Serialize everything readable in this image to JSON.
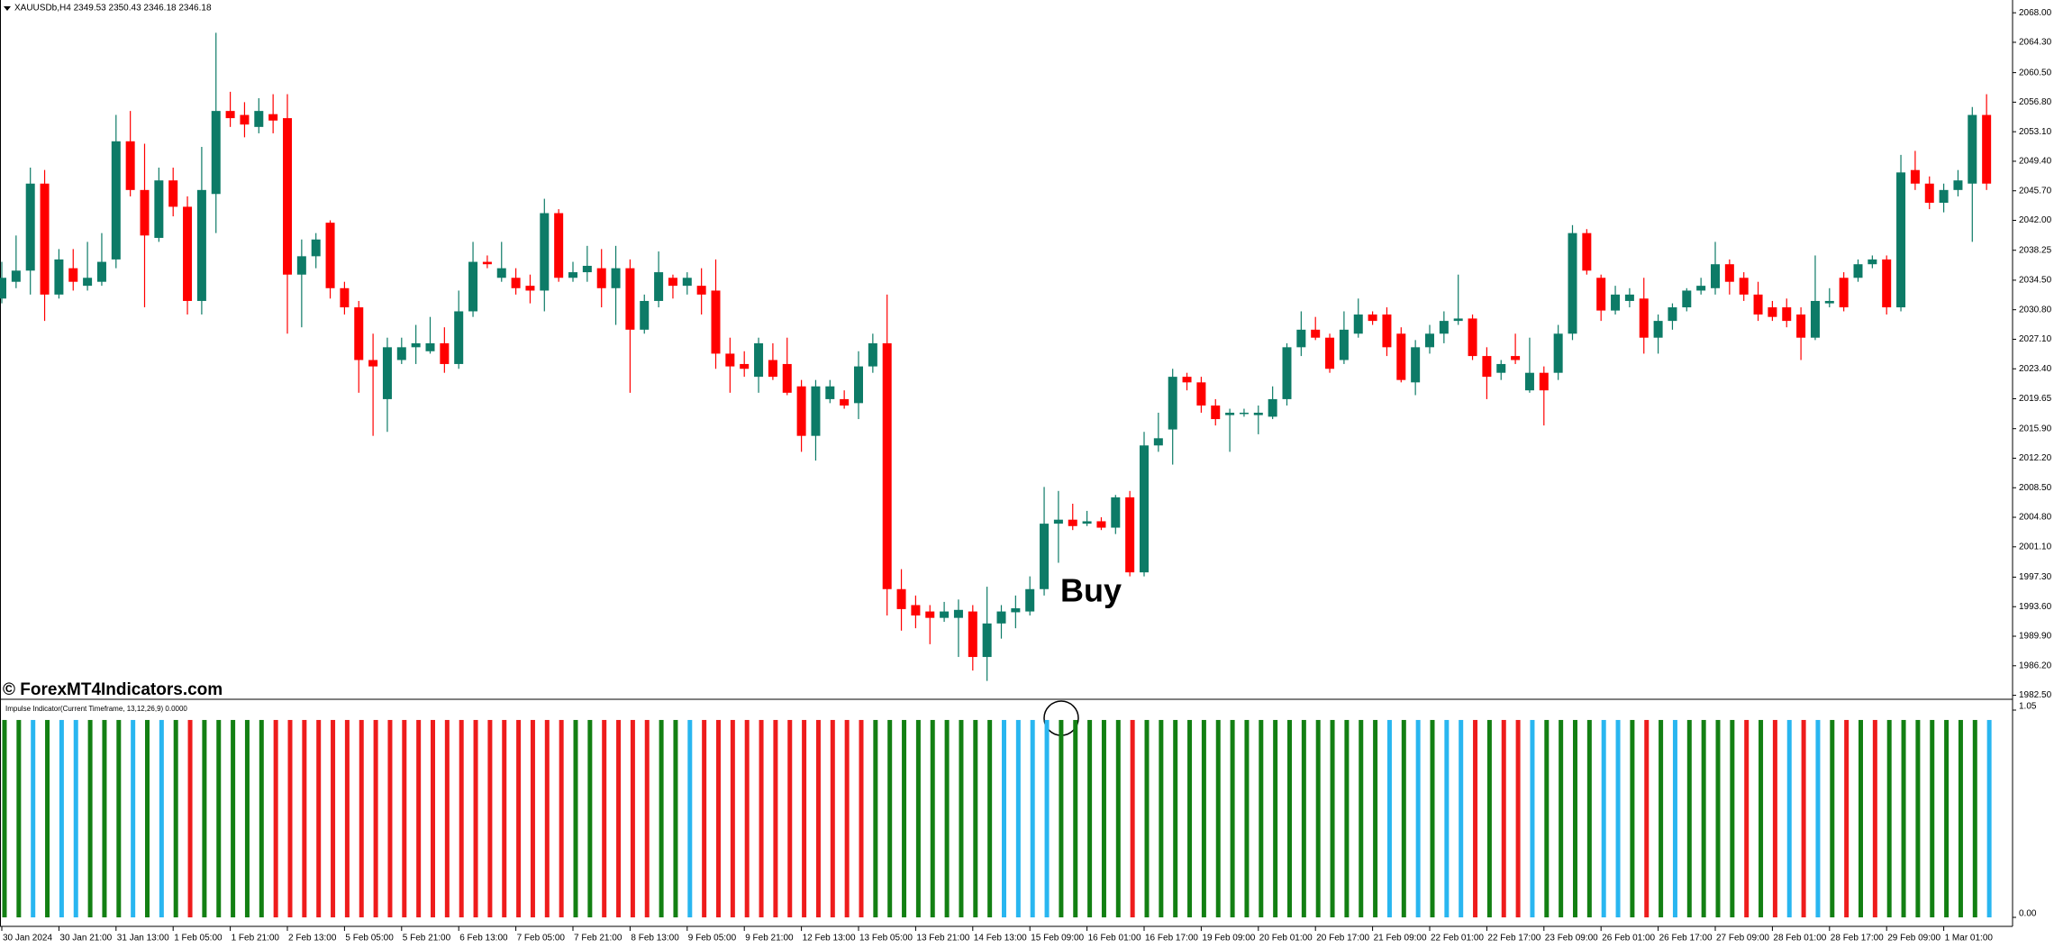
{
  "chart_data": [
    {
      "type": "candlestick",
      "title": "XAUUSDb,H4  2349.53 2350.43 2346.18 2346.18",
      "annotation": "Buy",
      "watermark": "© ForexMT4Indicators.com",
      "up_color": "#0d7b67",
      "down_color": "#ff0000",
      "ylim": [
        1982.0,
        2069.6
      ],
      "yticks": [
        {
          "value": 1982.5,
          "label": "1982.50"
        },
        {
          "value": 1986.2,
          "label": "1986.20"
        },
        {
          "value": 1989.9,
          "label": "1989.90"
        },
        {
          "value": 1993.6,
          "label": "1993.60"
        },
        {
          "value": 1997.3,
          "label": "1997.30"
        },
        {
          "value": 2001.1,
          "label": "2001.10"
        },
        {
          "value": 2004.8,
          "label": "2004.80"
        },
        {
          "value": 2008.5,
          "label": "2008.50"
        },
        {
          "value": 2012.2,
          "label": "2012.20"
        },
        {
          "value": 2015.9,
          "label": "2015.90"
        },
        {
          "value": 2019.65,
          "label": "2019.65"
        },
        {
          "value": 2023.4,
          "label": "2023.40"
        },
        {
          "value": 2027.1,
          "label": "2027.10"
        },
        {
          "value": 2030.8,
          "label": "2030.80"
        },
        {
          "value": 2034.5,
          "label": "2034.50"
        },
        {
          "value": 2038.25,
          "label": "2038.25"
        },
        {
          "value": 2042,
          "label": "2042.00"
        },
        {
          "value": 2045.7,
          "label": "2045.70"
        },
        {
          "value": 2049.4,
          "label": "2049.40"
        },
        {
          "value": 2053.1,
          "label": "2053.10"
        },
        {
          "value": 2056.8,
          "label": "2056.80"
        },
        {
          "value": 2060.5,
          "label": "2060.50"
        },
        {
          "value": 2064.3,
          "label": "2064.30"
        },
        {
          "value": 2068,
          "label": "2068.00"
        }
      ],
      "open": [
        2032.2,
        2034.3,
        2035.7,
        2046.6,
        2032.7,
        2036.0,
        2033.8,
        2034.3,
        2037.1,
        2051.9,
        2045.8,
        2039.8,
        2047.0,
        2043.7,
        2031.9,
        2045.3,
        2055.7,
        2055.2,
        2053.7,
        2055.3,
        2054.8,
        2035.2,
        2037.5,
        2041.7,
        2033.5,
        2031.1,
        2024.5,
        2019.6,
        2024.5,
        2026.1,
        2025.6,
        2026.6,
        2024.0,
        2030.6,
        2036.8,
        2034.8,
        2034.8,
        2033.8,
        2033.2,
        2042.9,
        2034.8,
        2035.5,
        2036.0,
        2033.5,
        2036.0,
        2028.3,
        2031.9,
        2034.8,
        2033.8,
        2033.8,
        2033.2,
        2025.3,
        2024.0,
        2022.4,
        2024.5,
        2024.0,
        2021.2,
        2015.0,
        2019.6,
        2019.6,
        2019.1,
        2023.7,
        2026.6,
        1995.8,
        1993.8,
        1993.0,
        1992.2,
        1992.2,
        1993.0,
        1987.3,
        1991.5,
        1992.9,
        1993.0,
        1995.8,
        2004.0,
        2004.5,
        2004.0,
        2004.3,
        2003.5,
        2007.3,
        1997.9,
        2013.8,
        2015.8,
        2022.4,
        2021.7,
        2018.8,
        2017.6,
        2017.8,
        2017.6,
        2017.4,
        2019.6,
        2026.1,
        2028.3,
        2027.3,
        2024.5,
        2027.8,
        2030.2,
        2030.2,
        2027.8,
        2021.7,
        2026.1,
        2027.8,
        2029.4,
        2029.7,
        2025.0,
        2022.9,
        2025.0,
        2020.7,
        2022.9,
        2022.9,
        2027.8,
        2040.4,
        2034.8,
        2030.7,
        2031.9,
        2032.2,
        2027.3,
        2029.4,
        2031.1,
        2033.2,
        2033.5,
        2036.5,
        2034.8,
        2032.7,
        2031.1,
        2031.1,
        2030.2,
        2027.3,
        2031.6,
        2034.8,
        2034.8,
        2036.5,
        2037.1,
        2031.1,
        2048.3,
        2046.6,
        2044.2,
        2045.8,
        2046.6,
        2055.2
      ],
      "high": [
        2036.8,
        2040.1,
        2048.6,
        2048.3,
        2038.4,
        2038.4,
        2039.3,
        2040.4,
        2055.2,
        2055.7,
        2051.6,
        2048.6,
        2048.6,
        2045.0,
        2051.2,
        2065.5,
        2058.1,
        2056.8,
        2057.3,
        2057.8,
        2057.8,
        2039.6,
        2040.4,
        2042.0,
        2034.3,
        2031.9,
        2027.8,
        2027.3,
        2027.3,
        2028.9,
        2029.9,
        2028.6,
        2033.2,
        2039.3,
        2037.6,
        2039.3,
        2036.0,
        2035.2,
        2044.7,
        2043.4,
        2036.8,
        2038.8,
        2038.4,
        2038.8,
        2037.1,
        2032.7,
        2038.1,
        2035.2,
        2035.5,
        2036.0,
        2037.1,
        2027.3,
        2025.6,
        2027.3,
        2026.6,
        2027.3,
        2022.0,
        2022.0,
        2022.0,
        2020.7,
        2025.6,
        2027.8,
        2032.7,
        1998.3,
        1995.0,
        1993.8,
        1994.2,
        1994.5,
        1993.8,
        1996.1,
        1993.8,
        1995.0,
        1997.4,
        2008.6,
        2008.1,
        2006.5,
        2005.6,
        2004.8,
        2007.6,
        2008.1,
        2015.5,
        2017.9,
        2023.4,
        2022.9,
        2022.4,
        2019.6,
        2018.4,
        2018.4,
        2018.8,
        2021.2,
        2026.6,
        2030.6,
        2029.9,
        2027.8,
        2030.6,
        2032.2,
        2030.6,
        2031.1,
        2028.6,
        2027.0,
        2028.9,
        2030.6,
        2035.2,
        2030.2,
        2026.1,
        2024.5,
        2027.8,
        2027.3,
        2023.7,
        2028.9,
        2041.4,
        2040.9,
        2035.2,
        2033.8,
        2033.5,
        2034.8,
        2030.2,
        2031.6,
        2033.5,
        2034.8,
        2039.3,
        2037.1,
        2035.5,
        2034.3,
        2031.9,
        2032.2,
        2031.1,
        2037.6,
        2033.5,
        2035.5,
        2037.1,
        2037.6,
        2037.6,
        2050.2,
        2050.7,
        2047.5,
        2046.6,
        2048.3,
        2056.2,
        2057.8
      ],
      "low": [
        2031.6,
        2033.5,
        2032.7,
        2029.4,
        2032.2,
        2033.2,
        2033.2,
        2033.8,
        2036.0,
        2045.0,
        2031.1,
        2039.3,
        2042.5,
        2030.2,
        2030.2,
        2040.4,
        2053.7,
        2052.4,
        2052.9,
        2052.9,
        2027.8,
        2028.6,
        2036.0,
        2032.2,
        2030.2,
        2020.4,
        2015.0,
        2015.5,
        2024.0,
        2024.0,
        2025.3,
        2022.9,
        2023.4,
        2029.9,
        2036.0,
        2034.3,
        2032.7,
        2031.6,
        2030.6,
        2034.3,
        2034.3,
        2034.3,
        2031.1,
        2028.9,
        2020.4,
        2027.8,
        2031.1,
        2032.2,
        2032.7,
        2030.2,
        2023.4,
        2020.4,
        2022.4,
        2020.4,
        2022.0,
        2020.1,
        2013.0,
        2011.9,
        2019.1,
        2018.4,
        2017.1,
        2022.9,
        1992.5,
        1990.6,
        1990.9,
        1988.9,
        1991.7,
        1987.3,
        1985.6,
        1984.3,
        1989.6,
        1990.9,
        1992.5,
        1995.0,
        1999.1,
        2003.2,
        2003.7,
        2003.2,
        2002.7,
        1997.4,
        1997.4,
        2013.0,
        2011.4,
        2020.7,
        2017.9,
        2016.3,
        2013.0,
        2017.4,
        2015.2,
        2017.1,
        2018.8,
        2025.0,
        2027.0,
        2022.9,
        2024.0,
        2027.3,
        2028.9,
        2025.0,
        2021.7,
        2020.1,
        2025.3,
        2026.6,
        2028.9,
        2024.5,
        2019.6,
        2022.0,
        2024.0,
        2020.4,
        2016.3,
        2022.0,
        2027.0,
        2035.2,
        2029.4,
        2030.2,
        2031.1,
        2025.3,
        2025.3,
        2028.3,
        2030.6,
        2032.7,
        2032.7,
        2032.7,
        2031.9,
        2029.4,
        2029.4,
        2028.6,
        2024.5,
        2027.0,
        2031.1,
        2030.6,
        2034.3,
        2036.0,
        2030.2,
        2030.6,
        2045.8,
        2043.4,
        2043.0,
        2045.0,
        2039.3,
        2045.8
      ],
      "close": [
        2034.8,
        2035.7,
        2046.6,
        2032.7,
        2037.1,
        2034.3,
        2034.8,
        2036.8,
        2051.9,
        2045.8,
        2040.1,
        2047.0,
        2043.7,
        2031.9,
        2045.8,
        2055.7,
        2054.8,
        2054.0,
        2055.7,
        2054.5,
        2035.2,
        2037.5,
        2039.6,
        2033.5,
        2031.1,
        2024.5,
        2023.7,
        2026.1,
        2026.1,
        2026.6,
        2026.6,
        2024.0,
        2030.6,
        2036.8,
        2036.5,
        2036.0,
        2033.5,
        2033.2,
        2042.9,
        2034.8,
        2035.5,
        2036.3,
        2033.5,
        2036.0,
        2028.3,
        2031.9,
        2035.5,
        2033.8,
        2034.8,
        2032.7,
        2025.3,
        2023.7,
        2023.4,
        2026.6,
        2022.4,
        2020.4,
        2015.0,
        2021.2,
        2021.2,
        2018.8,
        2023.7,
        2026.6,
        1995.8,
        1993.3,
        1992.5,
        1992.2,
        1993.0,
        1993.2,
        1987.3,
        1991.5,
        1993.0,
        1993.4,
        1995.8,
        2004.0,
        2004.5,
        2003.7,
        2004.3,
        2003.5,
        2007.3,
        1997.9,
        2013.8,
        2014.7,
        2022.4,
        2021.7,
        2018.8,
        2017.1,
        2017.9,
        2017.9,
        2017.9,
        2019.6,
        2026.1,
        2028.3,
        2027.3,
        2023.4,
        2028.3,
        2030.2,
        2029.4,
        2026.1,
        2022.0,
        2026.1,
        2027.8,
        2029.4,
        2029.7,
        2025.0,
        2022.4,
        2024.0,
        2024.5,
        2022.9,
        2020.7,
        2027.8,
        2040.4,
        2035.7,
        2030.7,
        2032.7,
        2032.7,
        2027.3,
        2029.4,
        2031.1,
        2033.2,
        2033.8,
        2036.5,
        2034.3,
        2032.7,
        2030.2,
        2029.9,
        2029.4,
        2027.3,
        2031.9,
        2031.9,
        2031.1,
        2036.5,
        2037.1,
        2031.1,
        2048.0,
        2046.6,
        2044.2,
        2045.8,
        2047.0,
        2055.2,
        2046.6
      ]
    },
    {
      "type": "bar",
      "title": "Impulse Indicator(Current Timeframe, 13,12,26,9) 0.0000",
      "ylim": [
        0,
        1.05
      ],
      "yticks": [
        {
          "value": 0,
          "label": "0.00"
        },
        1.05
      ],
      "x_labels": [
        "30 Jan 2024",
        "30 Jan 21:00",
        "31 Jan 13:00",
        "1 Feb 05:00",
        "1 Feb 21:00",
        "2 Feb 13:00",
        "5 Feb 05:00",
        "5 Feb 21:00",
        "6 Feb 13:00",
        "7 Feb 05:00",
        "7 Feb 21:00",
        "8 Feb 13:00",
        "9 Feb 05:00",
        "9 Feb 21:00",
        "12 Feb 13:00",
        "13 Feb 05:00",
        "13 Feb 21:00",
        "14 Feb 13:00",
        "15 Feb 09:00",
        "16 Feb 01:00",
        "16 Feb 17:00",
        "19 Feb 09:00",
        "20 Feb 01:00",
        "20 Feb 17:00",
        "21 Feb 09:00",
        "22 Feb 01:00",
        "22 Feb 17:00",
        "23 Feb 09:00",
        "26 Feb 01:00",
        "26 Feb 17:00",
        "27 Feb 09:00",
        "28 Feb 01:00",
        "28 Feb 17:00",
        "29 Feb 09:00",
        "1 Mar 01:00"
      ],
      "values": [
        1,
        1,
        1,
        1,
        1,
        1,
        1,
        1,
        1,
        1,
        1,
        1,
        1,
        1,
        1,
        1,
        1,
        1,
        1,
        1,
        1,
        1,
        1,
        1,
        1,
        1,
        1,
        1,
        1,
        1,
        1,
        1,
        1,
        1,
        1,
        1,
        1,
        1,
        1,
        1,
        1,
        1,
        1,
        1,
        1,
        1,
        1,
        1,
        1,
        1,
        1,
        1,
        1,
        1,
        1,
        1,
        1,
        1,
        1,
        1,
        1,
        1,
        1,
        1,
        1,
        1,
        1,
        1,
        1,
        1,
        1,
        1,
        1,
        1,
        1,
        1,
        1,
        1,
        1,
        1,
        1,
        1,
        1,
        1,
        1,
        1,
        1,
        1,
        1,
        1,
        1,
        1,
        1,
        1,
        1,
        1,
        1,
        1,
        1,
        1,
        1,
        1,
        1,
        1,
        1,
        1,
        1,
        1,
        1,
        1,
        1,
        1,
        1,
        1,
        1,
        1,
        1,
        1,
        1,
        1,
        1,
        1,
        1,
        1,
        1,
        1,
        1,
        1,
        1,
        1,
        1,
        1,
        1,
        1,
        1,
        1,
        1,
        1,
        1,
        1
      ],
      "bar_colors": [
        "#138013",
        "#138013",
        "#29b6f0",
        "#138013",
        "#29b6f0",
        "#29b6f0",
        "#138013",
        "#138013",
        "#138013",
        "#29b6f0",
        "#138013",
        "#29b6f0",
        "#138013",
        "#ee1c1c",
        "#138013",
        "#138013",
        "#138013",
        "#138013",
        "#138013",
        "#ee1c1c",
        "#ee1c1c",
        "#ee1c1c",
        "#ee1c1c",
        "#ee1c1c",
        "#ee1c1c",
        "#ee1c1c",
        "#ee1c1c",
        "#ee1c1c",
        "#ee1c1c",
        "#ee1c1c",
        "#ee1c1c",
        "#ee1c1c",
        "#ee1c1c",
        "#ee1c1c",
        "#ee1c1c",
        "#ee1c1c",
        "#ee1c1c",
        "#ee1c1c",
        "#ee1c1c",
        "#ee1c1c",
        "#138013",
        "#138013",
        "#ee1c1c",
        "#ee1c1c",
        "#ee1c1c",
        "#ee1c1c",
        "#138013",
        "#138013",
        "#29b6f0",
        "#ee1c1c",
        "#ee1c1c",
        "#ee1c1c",
        "#ee1c1c",
        "#ee1c1c",
        "#ee1c1c",
        "#ee1c1c",
        "#ee1c1c",
        "#ee1c1c",
        "#ee1c1c",
        "#ee1c1c",
        "#ee1c1c",
        "#138013",
        "#138013",
        "#138013",
        "#138013",
        "#138013",
        "#138013",
        "#138013",
        "#138013",
        "#138013",
        "#29b6f0",
        "#29b6f0",
        "#29b6f0",
        "#29b6f0",
        "#138013",
        "#138013",
        "#138013",
        "#138013",
        "#138013",
        "#ee1c1c",
        "#138013",
        "#138013",
        "#138013",
        "#138013",
        "#138013",
        "#138013",
        "#138013",
        "#138013",
        "#138013",
        "#138013",
        "#138013",
        "#138013",
        "#138013",
        "#138013",
        "#138013",
        "#138013",
        "#138013",
        "#29b6f0",
        "#138013",
        "#29b6f0",
        "#138013",
        "#29b6f0",
        "#29b6f0",
        "#ee1c1c",
        "#138013",
        "#ee1c1c",
        "#ee1c1c",
        "#29b6f0",
        "#138013",
        "#138013",
        "#138013",
        "#138013",
        "#29b6f0",
        "#29b6f0",
        "#138013",
        "#ee1c1c",
        "#138013",
        "#29b6f0",
        "#138013",
        "#138013",
        "#138013",
        "#138013",
        "#ee1c1c",
        "#138013",
        "#ee1c1c",
        "#29b6f0",
        "#ee1c1c",
        "#29b6f0",
        "#138013",
        "#ee1c1c",
        "#138013",
        "#ee1c1c",
        "#138013",
        "#138013",
        "#138013",
        "#138013",
        "#138013",
        "#138013",
        "#138013",
        "#29b6f0"
      ]
    }
  ]
}
